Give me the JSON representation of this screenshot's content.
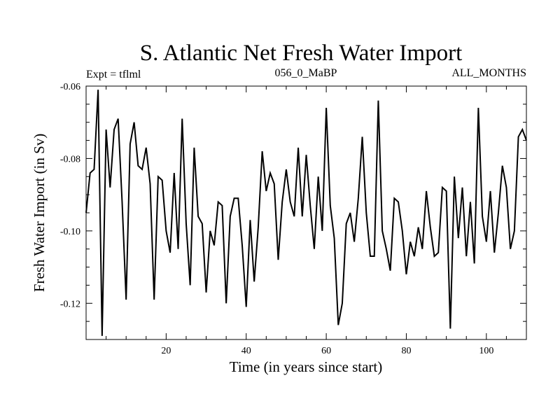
{
  "chart_data": {
    "type": "line",
    "title": "S. Atlantic Net Fresh Water Import",
    "subtitle_left": "Expt = tflml",
    "subtitle_center": "056_0_MaBP",
    "subtitle_right": "ALL_MONTHS",
    "xlabel": "Time (in years since start)",
    "ylabel": "Fresh Water Import (in Sv)",
    "xlim": [
      0,
      110
    ],
    "ylim": [
      -0.13,
      -0.06
    ],
    "x_ticks": [
      20,
      40,
      60,
      80,
      100
    ],
    "y_ticks": [
      -0.06,
      -0.08,
      -0.1,
      -0.12
    ],
    "x_tick_labels": [
      "20",
      "40",
      "60",
      "80",
      "100"
    ],
    "y_tick_labels": [
      "-0.06",
      "-0.08",
      "-0.10",
      "-0.12"
    ],
    "grid": false,
    "series": [
      {
        "name": "Fresh Water Import",
        "x": [
          0,
          1,
          2,
          3,
          4,
          5,
          6,
          7,
          8,
          9,
          10,
          11,
          12,
          13,
          14,
          15,
          16,
          17,
          18,
          19,
          20,
          21,
          22,
          23,
          24,
          25,
          26,
          27,
          28,
          29,
          30,
          31,
          32,
          33,
          34,
          35,
          36,
          37,
          38,
          39,
          40,
          41,
          42,
          43,
          44,
          45,
          46,
          47,
          48,
          49,
          50,
          51,
          52,
          53,
          54,
          55,
          56,
          57,
          58,
          59,
          60,
          61,
          62,
          63,
          64,
          65,
          66,
          67,
          68,
          69,
          70,
          71,
          72,
          73,
          74,
          75,
          76,
          77,
          78,
          79,
          80,
          81,
          82,
          83,
          84,
          85,
          86,
          87,
          88,
          89,
          90,
          91,
          92,
          93,
          94,
          95,
          96,
          97,
          98,
          99,
          100,
          101,
          102,
          103,
          104,
          105,
          106,
          107,
          108,
          109,
          110
        ],
        "values": [
          -0.095,
          -0.084,
          -0.083,
          -0.061,
          -0.129,
          -0.072,
          -0.088,
          -0.072,
          -0.069,
          -0.092,
          -0.119,
          -0.076,
          -0.07,
          -0.082,
          -0.083,
          -0.077,
          -0.087,
          -0.119,
          -0.085,
          -0.086,
          -0.1,
          -0.106,
          -0.084,
          -0.105,
          -0.069,
          -0.098,
          -0.115,
          -0.077,
          -0.096,
          -0.098,
          -0.117,
          -0.1,
          -0.104,
          -0.092,
          -0.093,
          -0.12,
          -0.096,
          -0.091,
          -0.091,
          -0.104,
          -0.121,
          -0.097,
          -0.114,
          -0.099,
          -0.078,
          -0.089,
          -0.084,
          -0.087,
          -0.108,
          -0.092,
          -0.083,
          -0.092,
          -0.096,
          -0.077,
          -0.096,
          -0.079,
          -0.093,
          -0.105,
          -0.085,
          -0.1,
          -0.066,
          -0.093,
          -0.102,
          -0.126,
          -0.12,
          -0.098,
          -0.095,
          -0.103,
          -0.091,
          -0.074,
          -0.095,
          -0.107,
          -0.107,
          -0.064,
          -0.1,
          -0.105,
          -0.111,
          -0.091,
          -0.092,
          -0.1,
          -0.112,
          -0.103,
          -0.107,
          -0.099,
          -0.105,
          -0.089,
          -0.099,
          -0.107,
          -0.106,
          -0.088,
          -0.089,
          -0.127,
          -0.085,
          -0.102,
          -0.088,
          -0.107,
          -0.092,
          -0.109,
          -0.066,
          -0.096,
          -0.103,
          -0.089,
          -0.106,
          -0.095,
          -0.082,
          -0.088,
          -0.105,
          -0.1,
          -0.074,
          -0.072,
          -0.075
        ]
      }
    ]
  }
}
